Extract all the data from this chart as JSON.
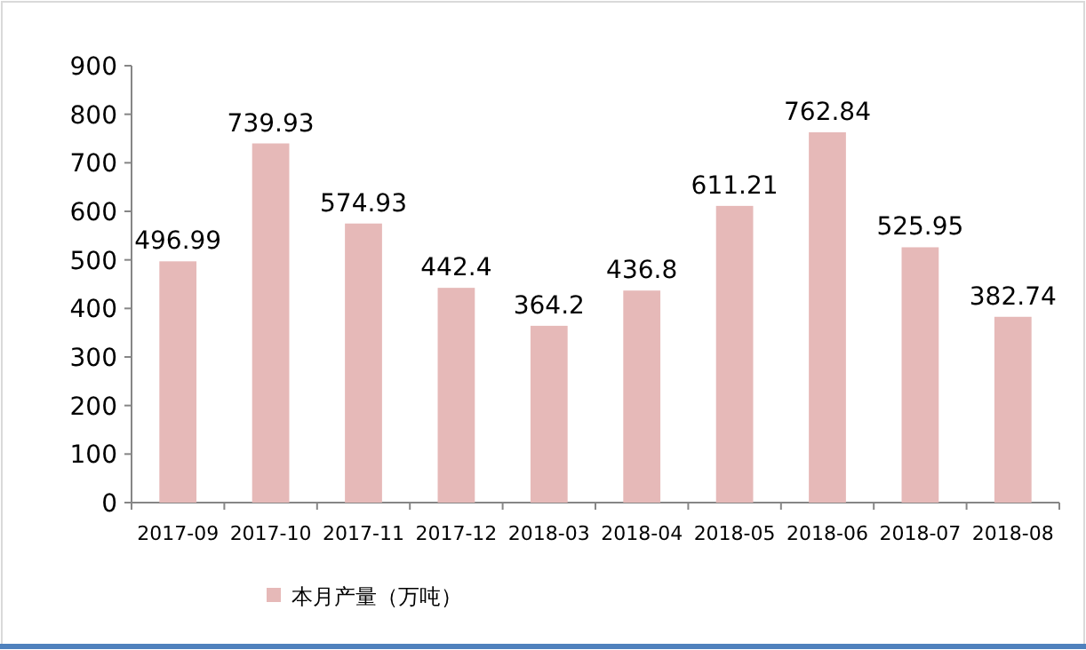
{
  "chart_data": {
    "type": "bar",
    "categories": [
      "2017-09",
      "2017-10",
      "2017-11",
      "2017-12",
      "2018-03",
      "2018-04",
      "2018-05",
      "2018-06",
      "2018-07",
      "2018-08"
    ],
    "series": [
      {
        "name": "本月产量（万吨）",
        "color": "#e6b9b8",
        "values": [
          496.99,
          739.93,
          574.93,
          442.4,
          364.2,
          436.8,
          611.21,
          762.84,
          525.95,
          382.74
        ]
      }
    ],
    "ylim": [
      0,
      900
    ],
    "yticks": [
      0,
      100,
      200,
      300,
      400,
      500,
      600,
      700,
      800,
      900
    ],
    "data_labels": true,
    "legend": "bottom"
  }
}
